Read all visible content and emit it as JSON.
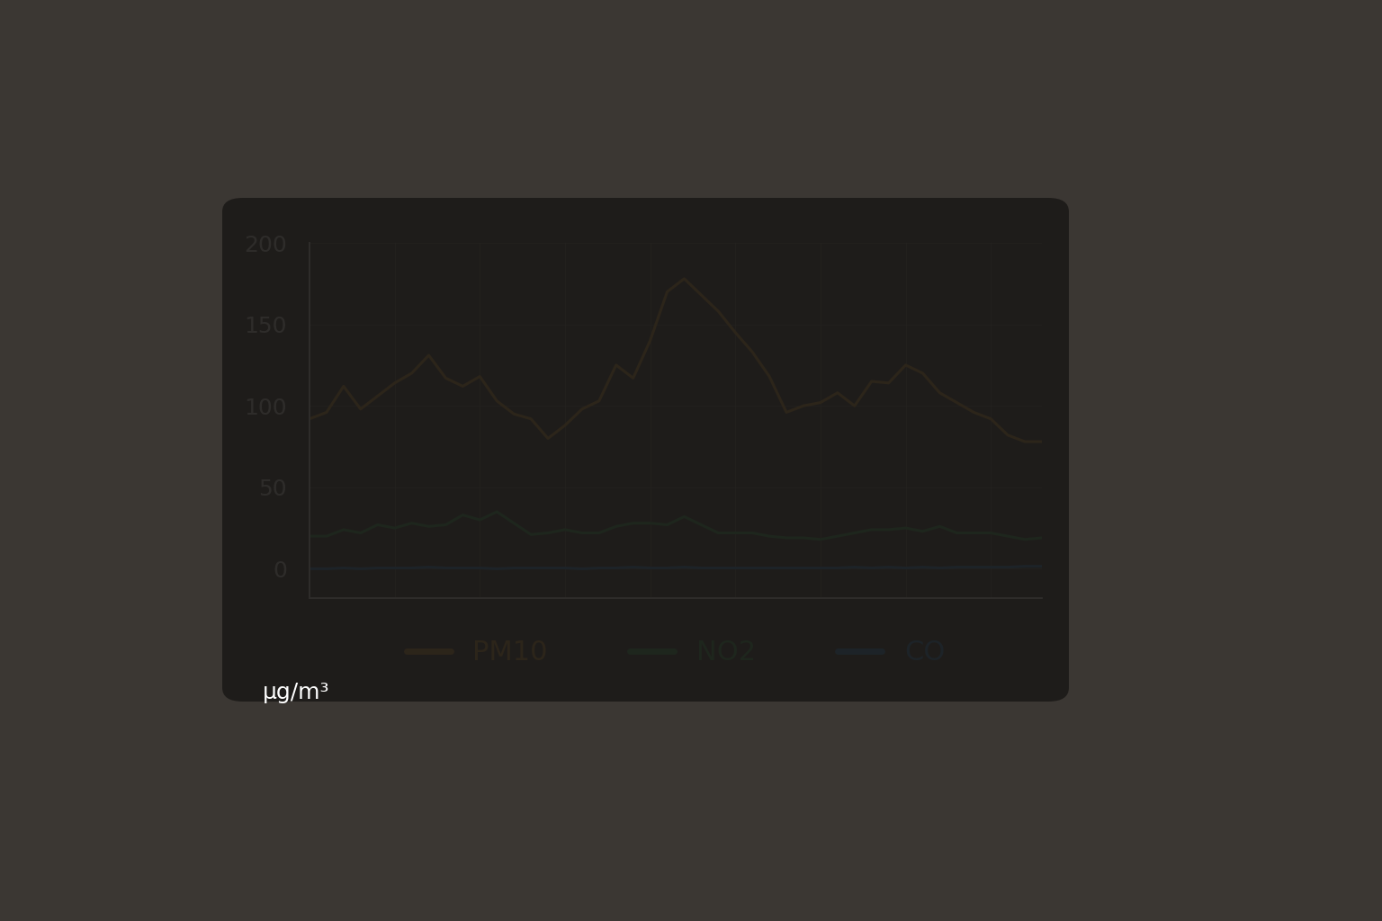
{
  "chart_data": {
    "type": "line",
    "x": [
      0,
      2,
      4,
      6,
      8,
      10,
      12,
      14,
      16,
      18,
      20,
      22,
      24,
      26,
      28,
      30,
      32,
      34,
      36,
      38,
      40,
      42,
      44,
      46,
      48,
      50,
      52,
      54,
      56,
      58,
      60,
      62,
      64,
      66,
      68,
      70,
      72,
      74,
      76,
      78,
      80,
      82,
      84,
      86
    ],
    "xlim": [
      0,
      86
    ],
    "xticks": [
      0,
      10,
      20,
      30,
      40,
      50,
      60,
      70,
      80
    ],
    "ylim": [
      -18,
      200
    ],
    "yticks": [
      0,
      50,
      100,
      150,
      200
    ],
    "y_label": "µg/m³",
    "grid": true,
    "legend": "lower center",
    "tick_labels": "y",
    "series": [
      {
        "name": "PM10",
        "color": "#e9a23b",
        "values": [
          92,
          96,
          112,
          98,
          106,
          114,
          120,
          131,
          117,
          112,
          118,
          103,
          95,
          92,
          80,
          88,
          98,
          103,
          125,
          117,
          140,
          170,
          178,
          168,
          158,
          145,
          133,
          118,
          96,
          100,
          102,
          108,
          100,
          115,
          114,
          125,
          120,
          108,
          102,
          96,
          92,
          82,
          78,
          78
        ]
      },
      {
        "name": "NO2",
        "color": "#3fae5a",
        "values": [
          20,
          20,
          24,
          22,
          27,
          25,
          28,
          26,
          27,
          33,
          30,
          35,
          28,
          21,
          22,
          24,
          22,
          22,
          26,
          28,
          28,
          27,
          32,
          27,
          22,
          22,
          22,
          20,
          19,
          19,
          18,
          20,
          22,
          24,
          24,
          25,
          23,
          26,
          22,
          22,
          22,
          20,
          18,
          19
        ]
      },
      {
        "name": "CO",
        "color": "#2f8fdc",
        "values": [
          0,
          0,
          0.5,
          0,
          0.5,
          0.5,
          0.5,
          1,
          0.5,
          0.5,
          0.5,
          0,
          0.5,
          0.5,
          0.5,
          0.5,
          0,
          0.5,
          0.5,
          1,
          0.5,
          0.5,
          1,
          0.5,
          0.5,
          0.5,
          0.5,
          0.5,
          0.5,
          0.5,
          0.5,
          0.5,
          1,
          0.5,
          1,
          0.5,
          1,
          0.5,
          1,
          1,
          1,
          1,
          1.5,
          1.5
        ]
      }
    ]
  }
}
